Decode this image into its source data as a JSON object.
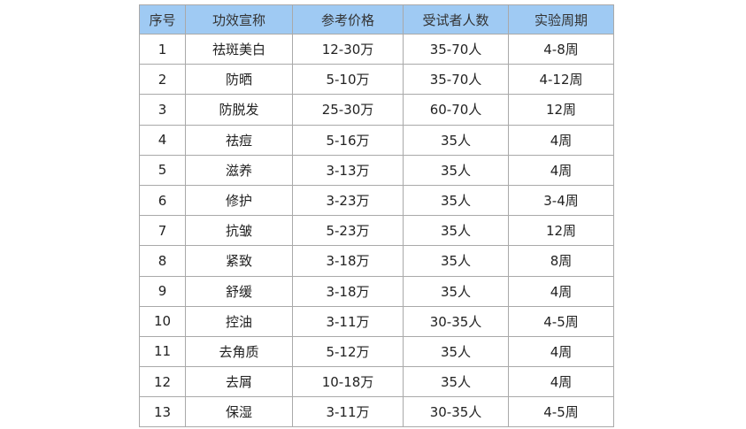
{
  "table": {
    "header_color": "#9fcaf3",
    "headers": [
      "序号",
      "功效宣称",
      "参考价格",
      "受试者人数",
      "实验周期"
    ],
    "rows": [
      [
        "1",
        "祛斑美白",
        "12-30万",
        "35-70人",
        "4-8周"
      ],
      [
        "2",
        "防晒",
        "5-10万",
        "35-70人",
        "4-12周"
      ],
      [
        "3",
        "防脱发",
        "25-30万",
        "60-70人",
        "12周"
      ],
      [
        "4",
        "祛痘",
        "5-16万",
        "35人",
        "4周"
      ],
      [
        "5",
        "滋养",
        "3-13万",
        "35人",
        "4周"
      ],
      [
        "6",
        "修护",
        "3-23万",
        "35人",
        "3-4周"
      ],
      [
        "7",
        "抗皱",
        "5-23万",
        "35人",
        "12周"
      ],
      [
        "8",
        "紧致",
        "3-18万",
        "35人",
        "8周"
      ],
      [
        "9",
        "舒缓",
        "3-18万",
        "35人",
        "4周"
      ],
      [
        "10",
        "控油",
        "3-11万",
        "30-35人",
        "4-5周"
      ],
      [
        "11",
        "去角质",
        "5-12万",
        "35人",
        "4周"
      ],
      [
        "12",
        "去屑",
        "10-18万",
        "35人",
        "4周"
      ],
      [
        "13",
        "保湿",
        "3-11万",
        "30-35人",
        "4-5周"
      ]
    ]
  }
}
